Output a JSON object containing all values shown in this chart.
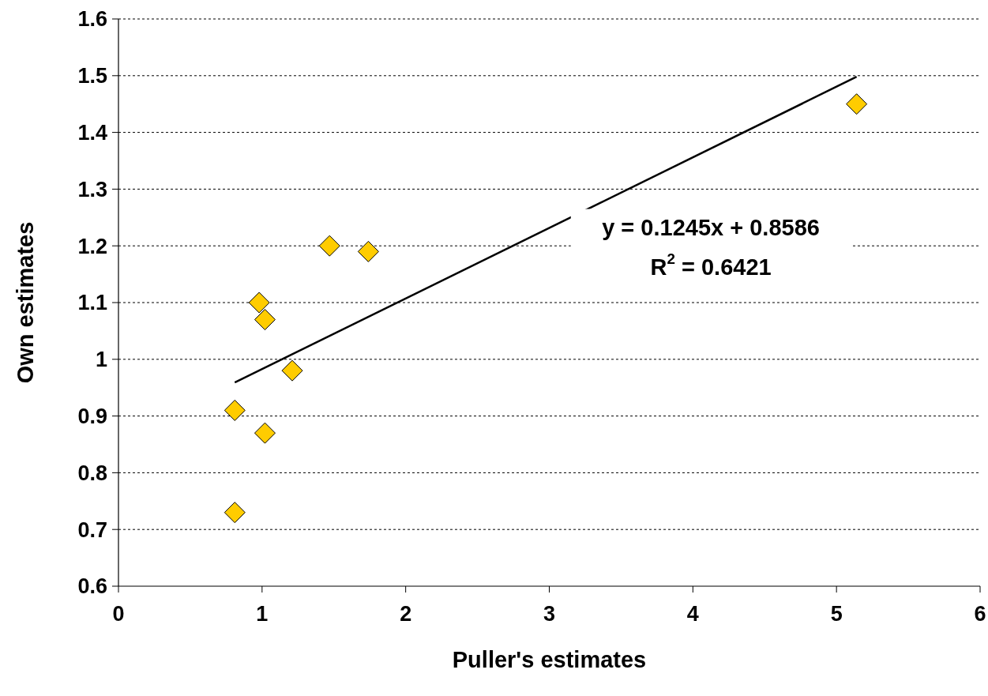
{
  "chart_data": {
    "type": "scatter",
    "xlabel": "Puller's estimates",
    "ylabel": "Own estimates",
    "xlim": [
      0,
      6
    ],
    "xticks": [
      0,
      1,
      2,
      3,
      4,
      5,
      6
    ],
    "ylim": [
      0.6,
      1.6
    ],
    "yticks": [
      0.6,
      0.7,
      0.8,
      0.9,
      1,
      1.1,
      1.2,
      1.3,
      1.4,
      1.5,
      1.6
    ],
    "grid": "y",
    "marker": "diamond",
    "series": [
      {
        "color": "#ffcc00",
        "x": [
          0.81,
          0.81,
          1.02,
          0.98,
          1.02,
          1.21,
          1.47,
          1.74,
          5.14
        ],
        "values": [
          0.73,
          0.91,
          0.87,
          1.1,
          1.07,
          0.98,
          1.2,
          1.19,
          1.45
        ]
      },
      {
        "type": "line",
        "marker": "none",
        "color": "#000000",
        "x": [
          0.81,
          5.14
        ],
        "values": [
          0.959,
          1.498
        ]
      }
    ],
    "annotations": [
      "y = 0.1245x + 0.8586",
      "R$^{2}$ = 0.6421"
    ]
  }
}
